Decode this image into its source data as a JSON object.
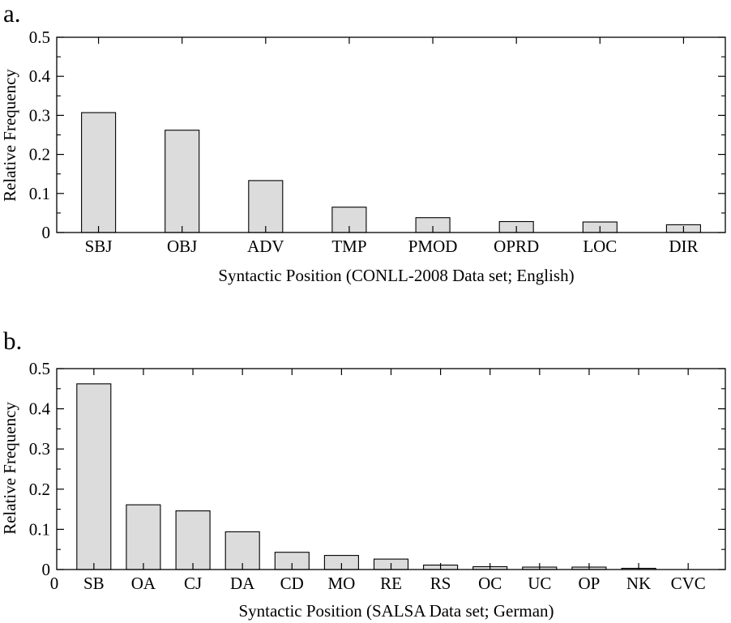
{
  "chart_data": [
    {
      "panel_label": "a.",
      "type": "bar",
      "categories": [
        "SBJ",
        "OBJ",
        "ADV",
        "TMP",
        "PMOD",
        "OPRD",
        "LOC",
        "DIR"
      ],
      "values": [
        0.307,
        0.262,
        0.133,
        0.065,
        0.038,
        0.028,
        0.027,
        0.02
      ],
      "xlabel": "Syntactic Position (CONLL-2008 Data set; English)",
      "ylabel": "Relative Frequency",
      "ylim": [
        0,
        0.5
      ],
      "yticks": [
        "0",
        "0.1",
        "0.2",
        "0.3",
        "0.4",
        "0.5"
      ],
      "x_origin_label": "",
      "bar_color": "#dcdcdc",
      "grid": false,
      "legend": "none"
    },
    {
      "panel_label": "b.",
      "type": "bar",
      "categories": [
        "SB",
        "OA",
        "CJ",
        "DA",
        "CD",
        "MO",
        "RE",
        "RS",
        "OC",
        "UC",
        "OP",
        "NK",
        "CVC"
      ],
      "values": [
        0.462,
        0.161,
        0.146,
        0.094,
        0.043,
        0.035,
        0.026,
        0.011,
        0.007,
        0.006,
        0.006,
        0.003,
        0.0
      ],
      "xlabel": "Syntactic Position (SALSA Data set; German)",
      "ylabel": "Relative Frequency",
      "ylim": [
        0,
        0.5
      ],
      "yticks": [
        "0",
        "0.1",
        "0.2",
        "0.3",
        "0.4",
        "0.5"
      ],
      "x_origin_label": "0",
      "bar_color": "#dcdcdc",
      "grid": false,
      "legend": "none"
    }
  ]
}
